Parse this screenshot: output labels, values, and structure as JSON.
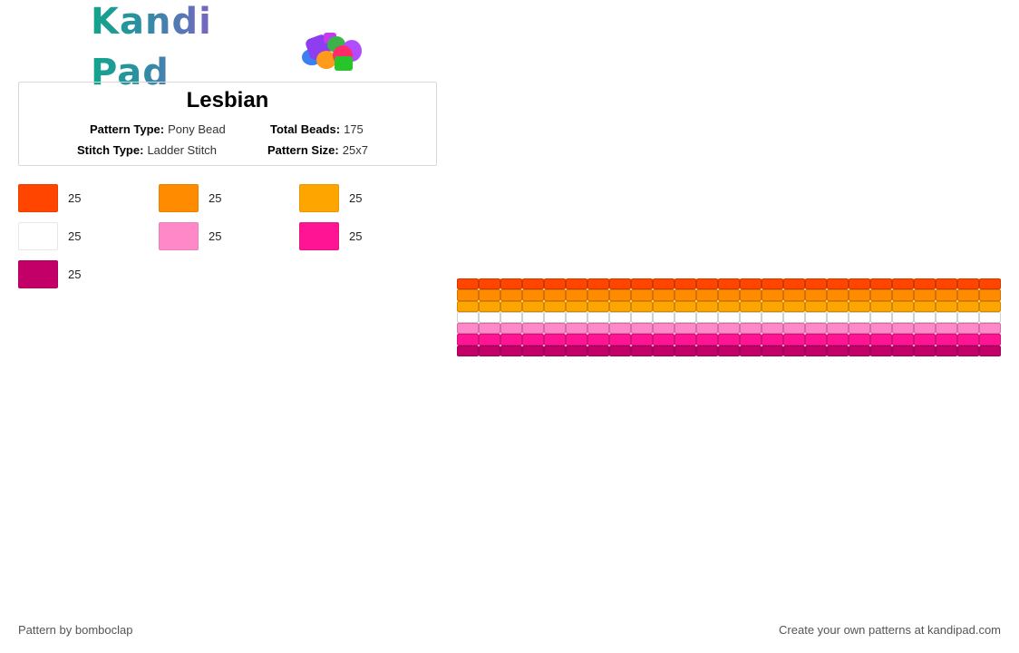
{
  "brand": {
    "name": "Kandi Pad"
  },
  "pattern": {
    "title": "Lesbian",
    "type_label": "Pattern Type:",
    "type_value": "Pony Bead",
    "beads_label": "Total Beads:",
    "beads_value": "175",
    "stitch_label": "Stitch Type:",
    "stitch_value": "Ladder Stitch",
    "size_label": "Pattern Size:",
    "size_value": "25x7",
    "columns": 25
  },
  "legend": [
    {
      "color": "#ff4500",
      "count": "25"
    },
    {
      "color": "#ff8c00",
      "count": "25"
    },
    {
      "color": "#ffa500",
      "count": "25"
    },
    {
      "color": "#ffffff",
      "count": "25"
    },
    {
      "color": "#ff88c8",
      "count": "25"
    },
    {
      "color": "#ff1493",
      "count": "25"
    },
    {
      "color": "#c30068",
      "count": "25"
    }
  ],
  "rows": [
    "#ff4500",
    "#ff8c00",
    "#ffa500",
    "#ffffff",
    "#ff88c8",
    "#ff1493",
    "#c30068"
  ],
  "footer": {
    "left": "Pattern by bomboclap",
    "right": "Create your own patterns at kandipad.com"
  }
}
